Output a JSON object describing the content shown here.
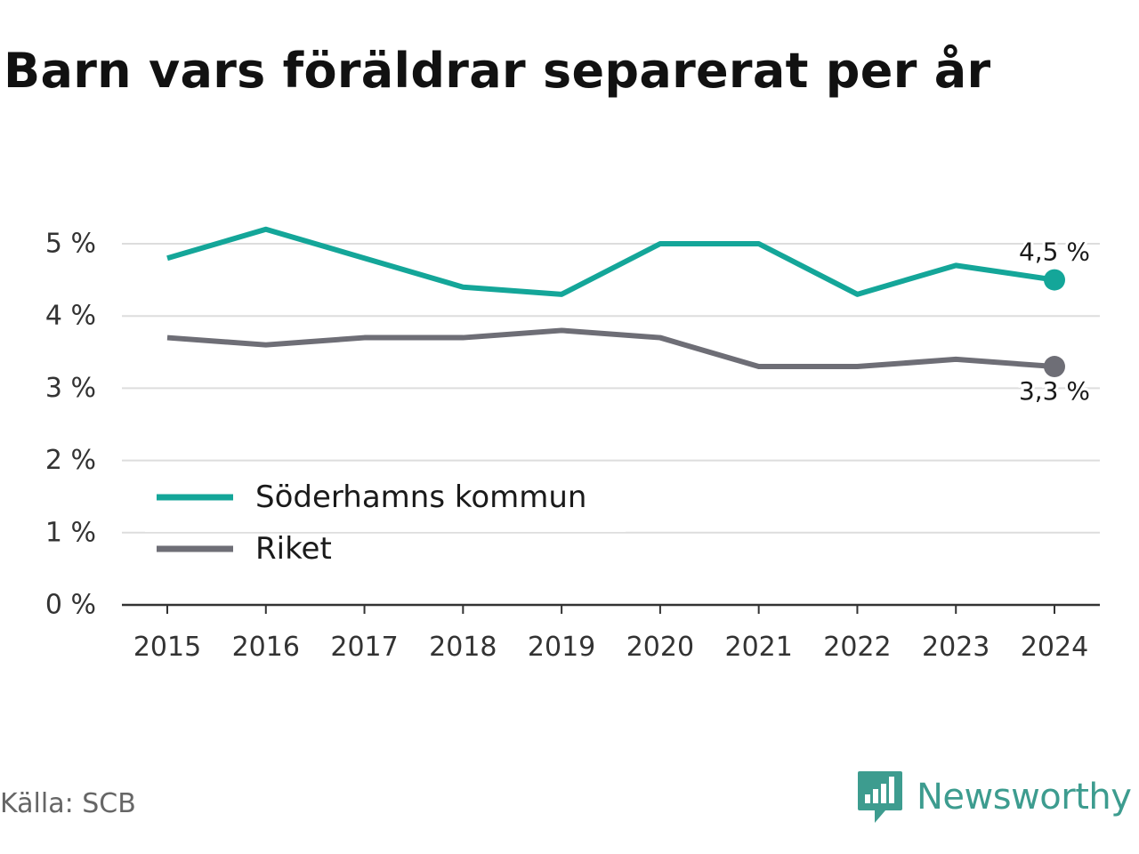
{
  "title": "Barn vars föräldrar separerat per år",
  "source": "Källa: SCB",
  "brand": {
    "name": "Newsworthy",
    "logo_icon": "bar-chart-speech-bubble-icon",
    "color": "#3d9c8f"
  },
  "chart_data": {
    "type": "line",
    "x": [
      "2015",
      "2016",
      "2017",
      "2018",
      "2019",
      "2020",
      "2021",
      "2022",
      "2023",
      "2024"
    ],
    "ylim": [
      0,
      5
    ],
    "y_ticks": [
      0,
      1,
      2,
      3,
      4,
      5
    ],
    "y_tick_labels": [
      "0 %",
      "1 %",
      "2 %",
      "3 %",
      "4 %",
      "5 %"
    ],
    "grid": true,
    "legend_position": "bottom-left",
    "series": [
      {
        "name": "Söderhamns kommun",
        "color": "#14a699",
        "values": [
          4.8,
          5.2,
          4.8,
          4.4,
          4.3,
          5.0,
          5.0,
          4.3,
          4.7,
          4.5
        ],
        "end_label": "4,5 %"
      },
      {
        "name": "Riket",
        "color": "#6e6e76",
        "values": [
          3.7,
          3.6,
          3.7,
          3.7,
          3.8,
          3.7,
          3.3,
          3.3,
          3.4,
          3.3
        ],
        "end_label": "3,3 %"
      }
    ]
  }
}
